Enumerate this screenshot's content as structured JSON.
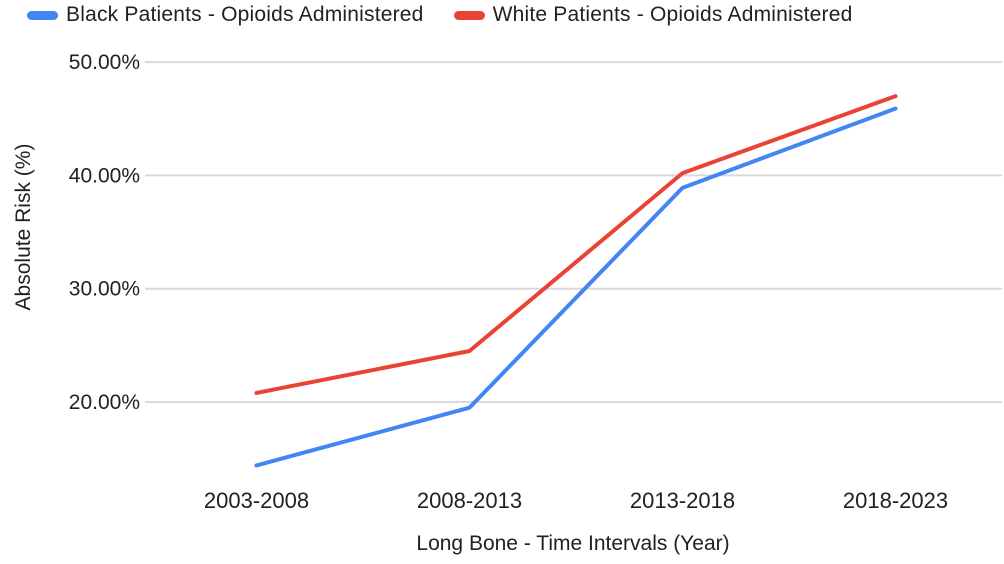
{
  "chart_data": {
    "type": "line",
    "categories": [
      "2003-2008",
      "2008-2013",
      "2013-2018",
      "2018-2023"
    ],
    "series": [
      {
        "name": "Black Patients - Opioids Administered",
        "color": "#4285F4",
        "values": [
          14.4,
          19.5,
          38.9,
          45.9
        ]
      },
      {
        "name": "White Patients - Opioids Administered",
        "color": "#EA4335",
        "values": [
          20.8,
          24.5,
          40.2,
          47.0
        ]
      }
    ],
    "xlabel": "Long Bone - Time Intervals (Year)",
    "ylabel": "Absolute Risk (%)",
    "y_ticks": [
      "20.00%",
      "30.00%",
      "40.00%",
      "50.00%"
    ],
    "y_tick_values": [
      20,
      30,
      40,
      50
    ],
    "ylim": [
      13,
      51
    ],
    "grid": true,
    "gridline_color": "#D9D9D9",
    "legend_position": "top"
  }
}
